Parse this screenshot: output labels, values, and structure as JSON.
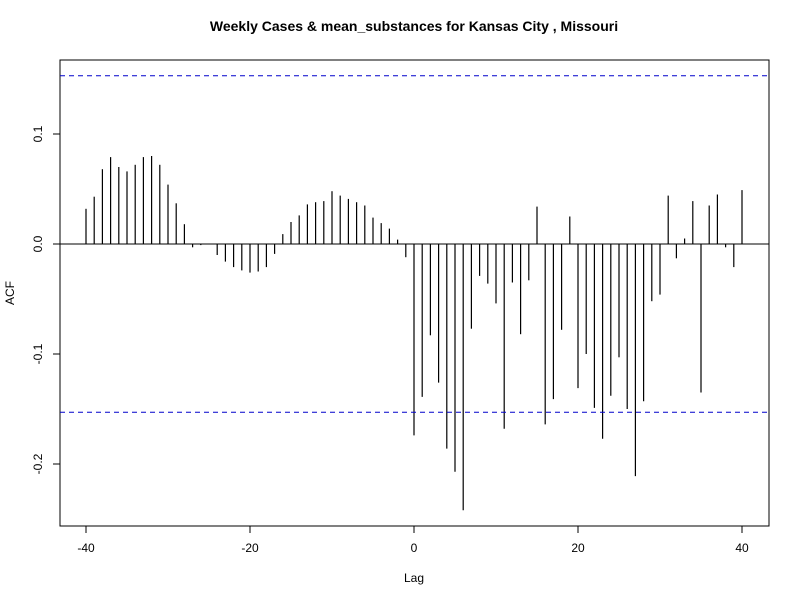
{
  "chart_data": {
    "type": "bar",
    "title": "Weekly Cases & mean_substances for Kansas City , Missouri",
    "xlabel": "Lag",
    "ylabel": "ACF",
    "xlim": [
      -42,
      43
    ],
    "ylim": [
      -0.255,
      0.167
    ],
    "x_ticks": [
      -40,
      -20,
      0,
      20,
      40
    ],
    "y_ticks": [
      -0.2,
      -0.1,
      0.0,
      0.1
    ],
    "y_tick_labels": [
      "-0.2",
      "-0.1",
      "0.0",
      "0.1"
    ],
    "confidence_bounds": [
      0.153,
      -0.153
    ],
    "colors": {
      "bars": "#000000",
      "bounds": "#0000cc",
      "zero_line": "#000000"
    },
    "x": [
      -40,
      -39,
      -38,
      -37,
      -36,
      -35,
      -34,
      -33,
      -32,
      -31,
      -30,
      -29,
      -28,
      -27,
      -26,
      -25,
      -24,
      -23,
      -22,
      -21,
      -20,
      -19,
      -18,
      -17,
      -16,
      -15,
      -14,
      -13,
      -12,
      -11,
      -10,
      -9,
      -8,
      -7,
      -6,
      -5,
      -4,
      -3,
      -2,
      -1,
      0,
      1,
      2,
      3,
      4,
      5,
      6,
      7,
      8,
      9,
      10,
      11,
      12,
      13,
      14,
      15,
      16,
      17,
      18,
      19,
      20,
      21,
      22,
      23,
      24,
      25,
      26,
      27,
      28,
      29,
      30,
      31,
      32,
      33,
      34,
      35,
      36,
      37,
      38,
      39,
      40
    ],
    "values": [
      0.032,
      0.043,
      0.068,
      0.079,
      0.07,
      0.066,
      0.072,
      0.079,
      0.08,
      0.072,
      0.054,
      0.037,
      0.018,
      -0.003,
      -0.001,
      0.0,
      -0.01,
      -0.016,
      -0.021,
      -0.024,
      -0.026,
      -0.025,
      -0.021,
      -0.009,
      0.009,
      0.02,
      0.026,
      0.036,
      0.038,
      0.039,
      0.048,
      0.044,
      0.041,
      0.038,
      0.035,
      0.024,
      0.019,
      0.014,
      0.004,
      -0.012,
      -0.174,
      -0.139,
      -0.083,
      -0.126,
      -0.186,
      -0.207,
      -0.242,
      -0.077,
      -0.029,
      -0.036,
      -0.054,
      -0.168,
      -0.035,
      -0.082,
      -0.033,
      0.034,
      -0.164,
      -0.141,
      -0.078,
      0.025,
      -0.131,
      -0.1,
      -0.149,
      -0.177,
      -0.138,
      -0.103,
      -0.15,
      -0.211,
      -0.143,
      -0.052,
      -0.046,
      0.044,
      -0.013,
      0.005,
      0.039,
      -0.135,
      0.035,
      0.045,
      -0.003,
      -0.021,
      0.049
    ]
  }
}
